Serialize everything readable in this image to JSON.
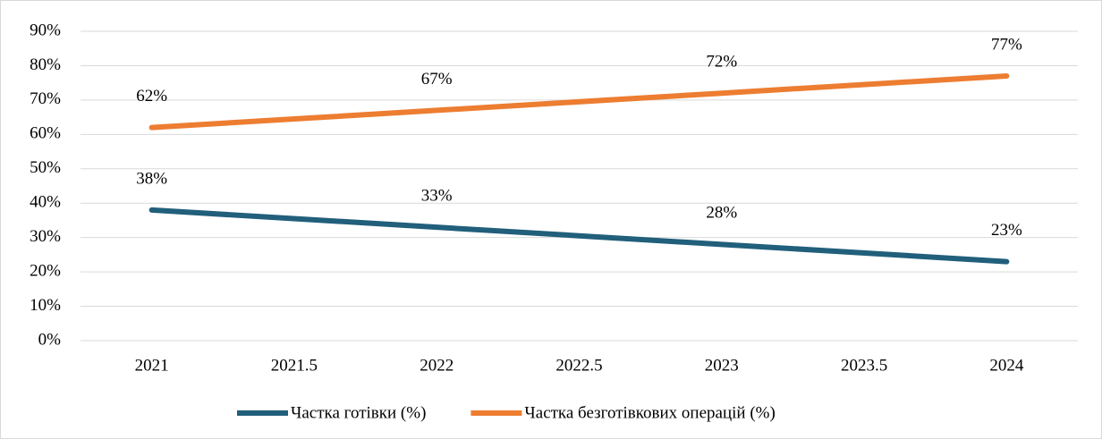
{
  "chart_data": {
    "type": "line",
    "x": [
      2021,
      2022,
      2023,
      2024
    ],
    "series": [
      {
        "name": "Частка готівки (%)",
        "color": "#215f7b",
        "values": [
          38,
          33,
          28,
          23
        ],
        "value_labels": [
          "38%",
          "33%",
          "28%",
          "23%"
        ]
      },
      {
        "name": "Частка безготівкових операцій (%)",
        "color": "#ed7d31",
        "values": [
          62,
          67,
          72,
          77
        ],
        "value_labels": [
          "62%",
          "67%",
          "72%",
          "77%"
        ]
      }
    ],
    "xlim": [
      2020.75,
      2024.25
    ],
    "xticks": [
      2021,
      2021.5,
      2022,
      2022.5,
      2023,
      2023.5,
      2024
    ],
    "ylim": [
      0,
      90
    ],
    "yticks": [
      {
        "value": 0,
        "label": "0%"
      },
      {
        "value": 10,
        "label": "10%"
      },
      {
        "value": 20,
        "label": "20%"
      },
      {
        "value": 30,
        "label": "30%"
      },
      {
        "value": 40,
        "label": "40%"
      },
      {
        "value": 50,
        "label": "50%"
      },
      {
        "value": 60,
        "label": "60%"
      },
      {
        "value": 70,
        "label": "70%"
      },
      {
        "value": 80,
        "label": "80%"
      },
      {
        "value": 90,
        "label": "90%"
      }
    ],
    "grid": true,
    "legend": "bottom"
  }
}
